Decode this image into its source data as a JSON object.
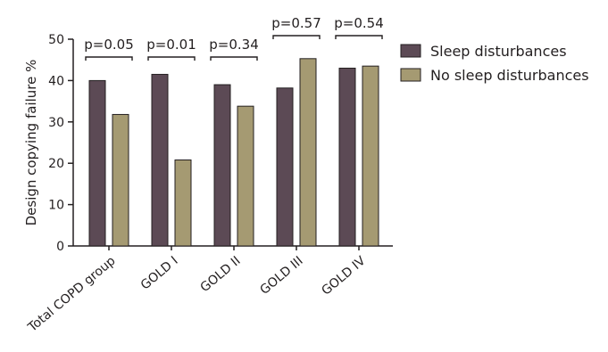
{
  "chart_data": {
    "type": "bar",
    "title": "",
    "xlabel": "",
    "ylabel": "Design copying failure %",
    "ylim": [
      0,
      50
    ],
    "yticks": [
      0,
      10,
      20,
      30,
      40,
      50
    ],
    "grid": false,
    "legend_position": "top-right",
    "categories": [
      "Total COPD group",
      "GOLD I",
      "GOLD II",
      "GOLD III",
      "GOLD IV"
    ],
    "series": [
      {
        "name": "Sleep disturbances",
        "color": "#5c4a55",
        "values": [
          40,
          41.5,
          39,
          38.2,
          43
        ]
      },
      {
        "name": "No sleep disturbances",
        "color": "#a59a72",
        "values": [
          31.8,
          20.8,
          33.8,
          45.3,
          43.5
        ]
      }
    ],
    "annotations": [
      "p=0.05",
      "p=0.01",
      "p=0.34",
      "p=0.57",
      "p=0.54"
    ]
  }
}
